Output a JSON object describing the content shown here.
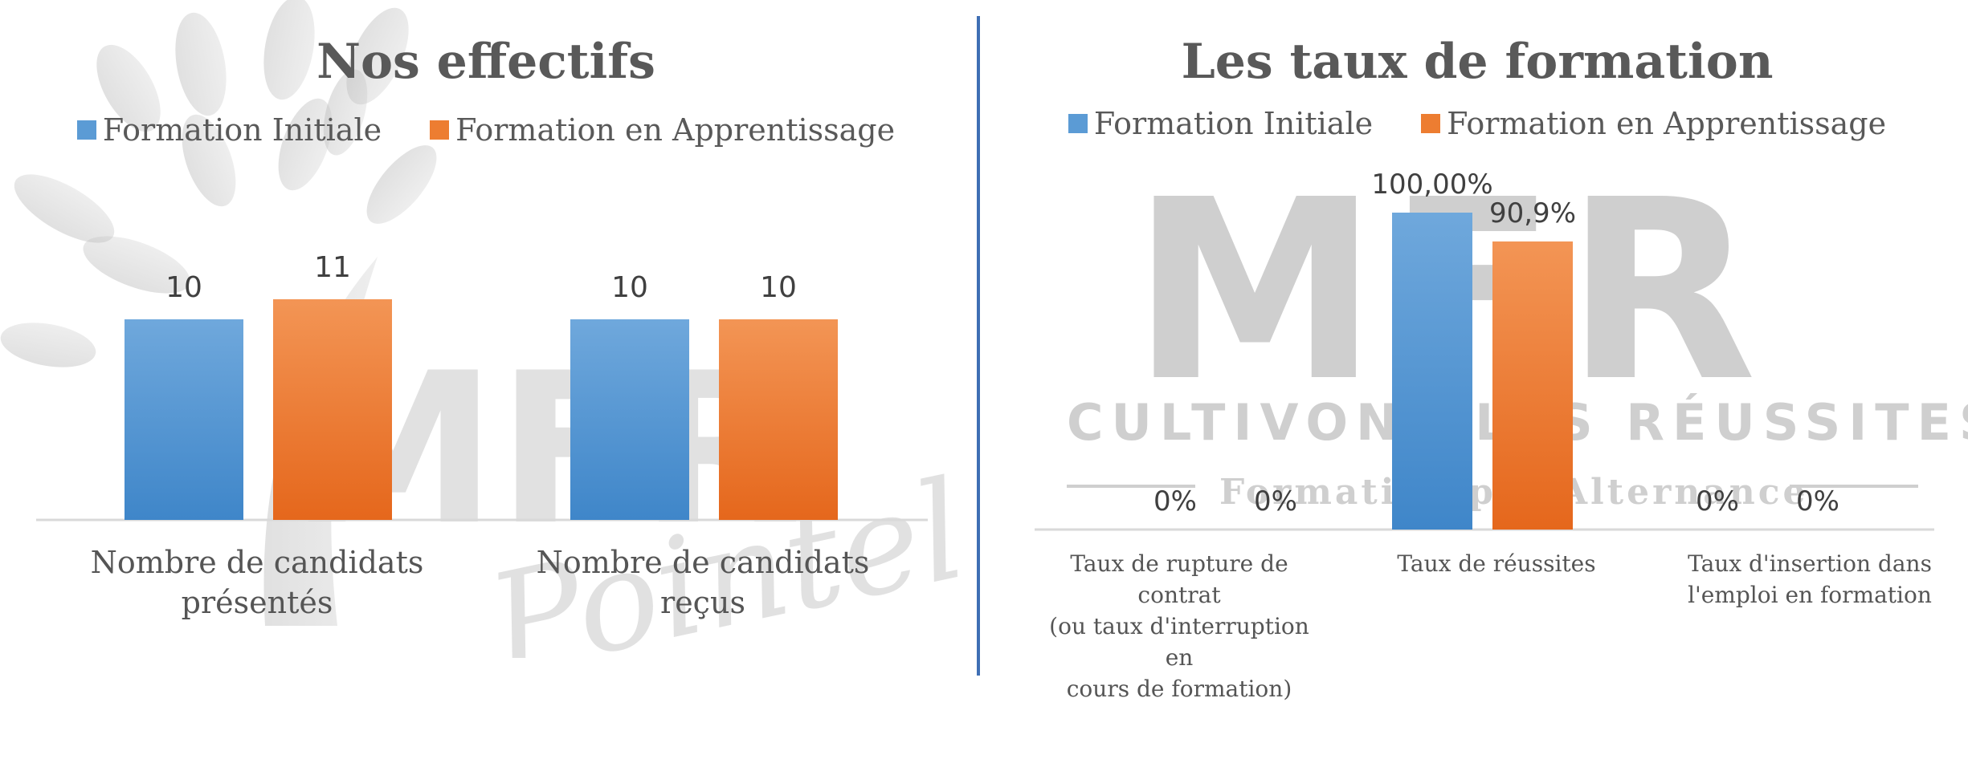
{
  "colors": {
    "initiale": "#5b9bd5",
    "apprentissage": "#ed7d31",
    "divider": "#3f6fb4",
    "watermark": "#d0d0d0"
  },
  "watermark_left": {
    "logo_text": "MFR",
    "script_text": "Pointel"
  },
  "watermark_right": {
    "logo_text": "MFR",
    "tagline": "CULTIVONS LES RÉUSSITES",
    "subtitle": "Formation par Alternance"
  },
  "chart_data": [
    {
      "type": "bar",
      "title": "Nos effectifs",
      "categories": [
        "Nombre de candidats présentés",
        "Nombre de candidats reçus"
      ],
      "category_lines": [
        [
          "Nombre de candidats",
          "présentés"
        ],
        [
          "Nombre de candidats reçus"
        ]
      ],
      "series": [
        {
          "name": "Formation Initiale",
          "values": [
            10,
            10
          ],
          "labels": [
            "10",
            "10"
          ]
        },
        {
          "name": "Formation en Apprentissage",
          "values": [
            11,
            10
          ],
          "labels": [
            "11",
            "10"
          ]
        }
      ],
      "ylim": [
        0,
        16
      ],
      "grid": false,
      "legend_position": "top"
    },
    {
      "type": "bar",
      "title": "Les taux de formation",
      "categories": [
        "Taux de rupture de contrat (ou taux d'interruption en cours de formation)",
        "Taux de réussites",
        "Taux d'insertion dans l'emploi en formation"
      ],
      "category_lines": [
        [
          "Taux de rupture de",
          "contrat",
          "(ou taux d'interruption en",
          "cours de formation)"
        ],
        [
          "Taux de réussites"
        ],
        [
          "Taux d'insertion dans",
          "l'emploi en formation"
        ]
      ],
      "series": [
        {
          "name": "Formation Initiale",
          "values": [
            0,
            100,
            0
          ],
          "labels": [
            "0%",
            "100,00%",
            "0%"
          ]
        },
        {
          "name": "Formation en Apprentissage",
          "values": [
            0,
            90.9,
            0
          ],
          "labels": [
            "0%",
            "90,9%",
            "0%"
          ]
        }
      ],
      "ylim": [
        0,
        100
      ],
      "grid": false,
      "legend_position": "top"
    }
  ]
}
